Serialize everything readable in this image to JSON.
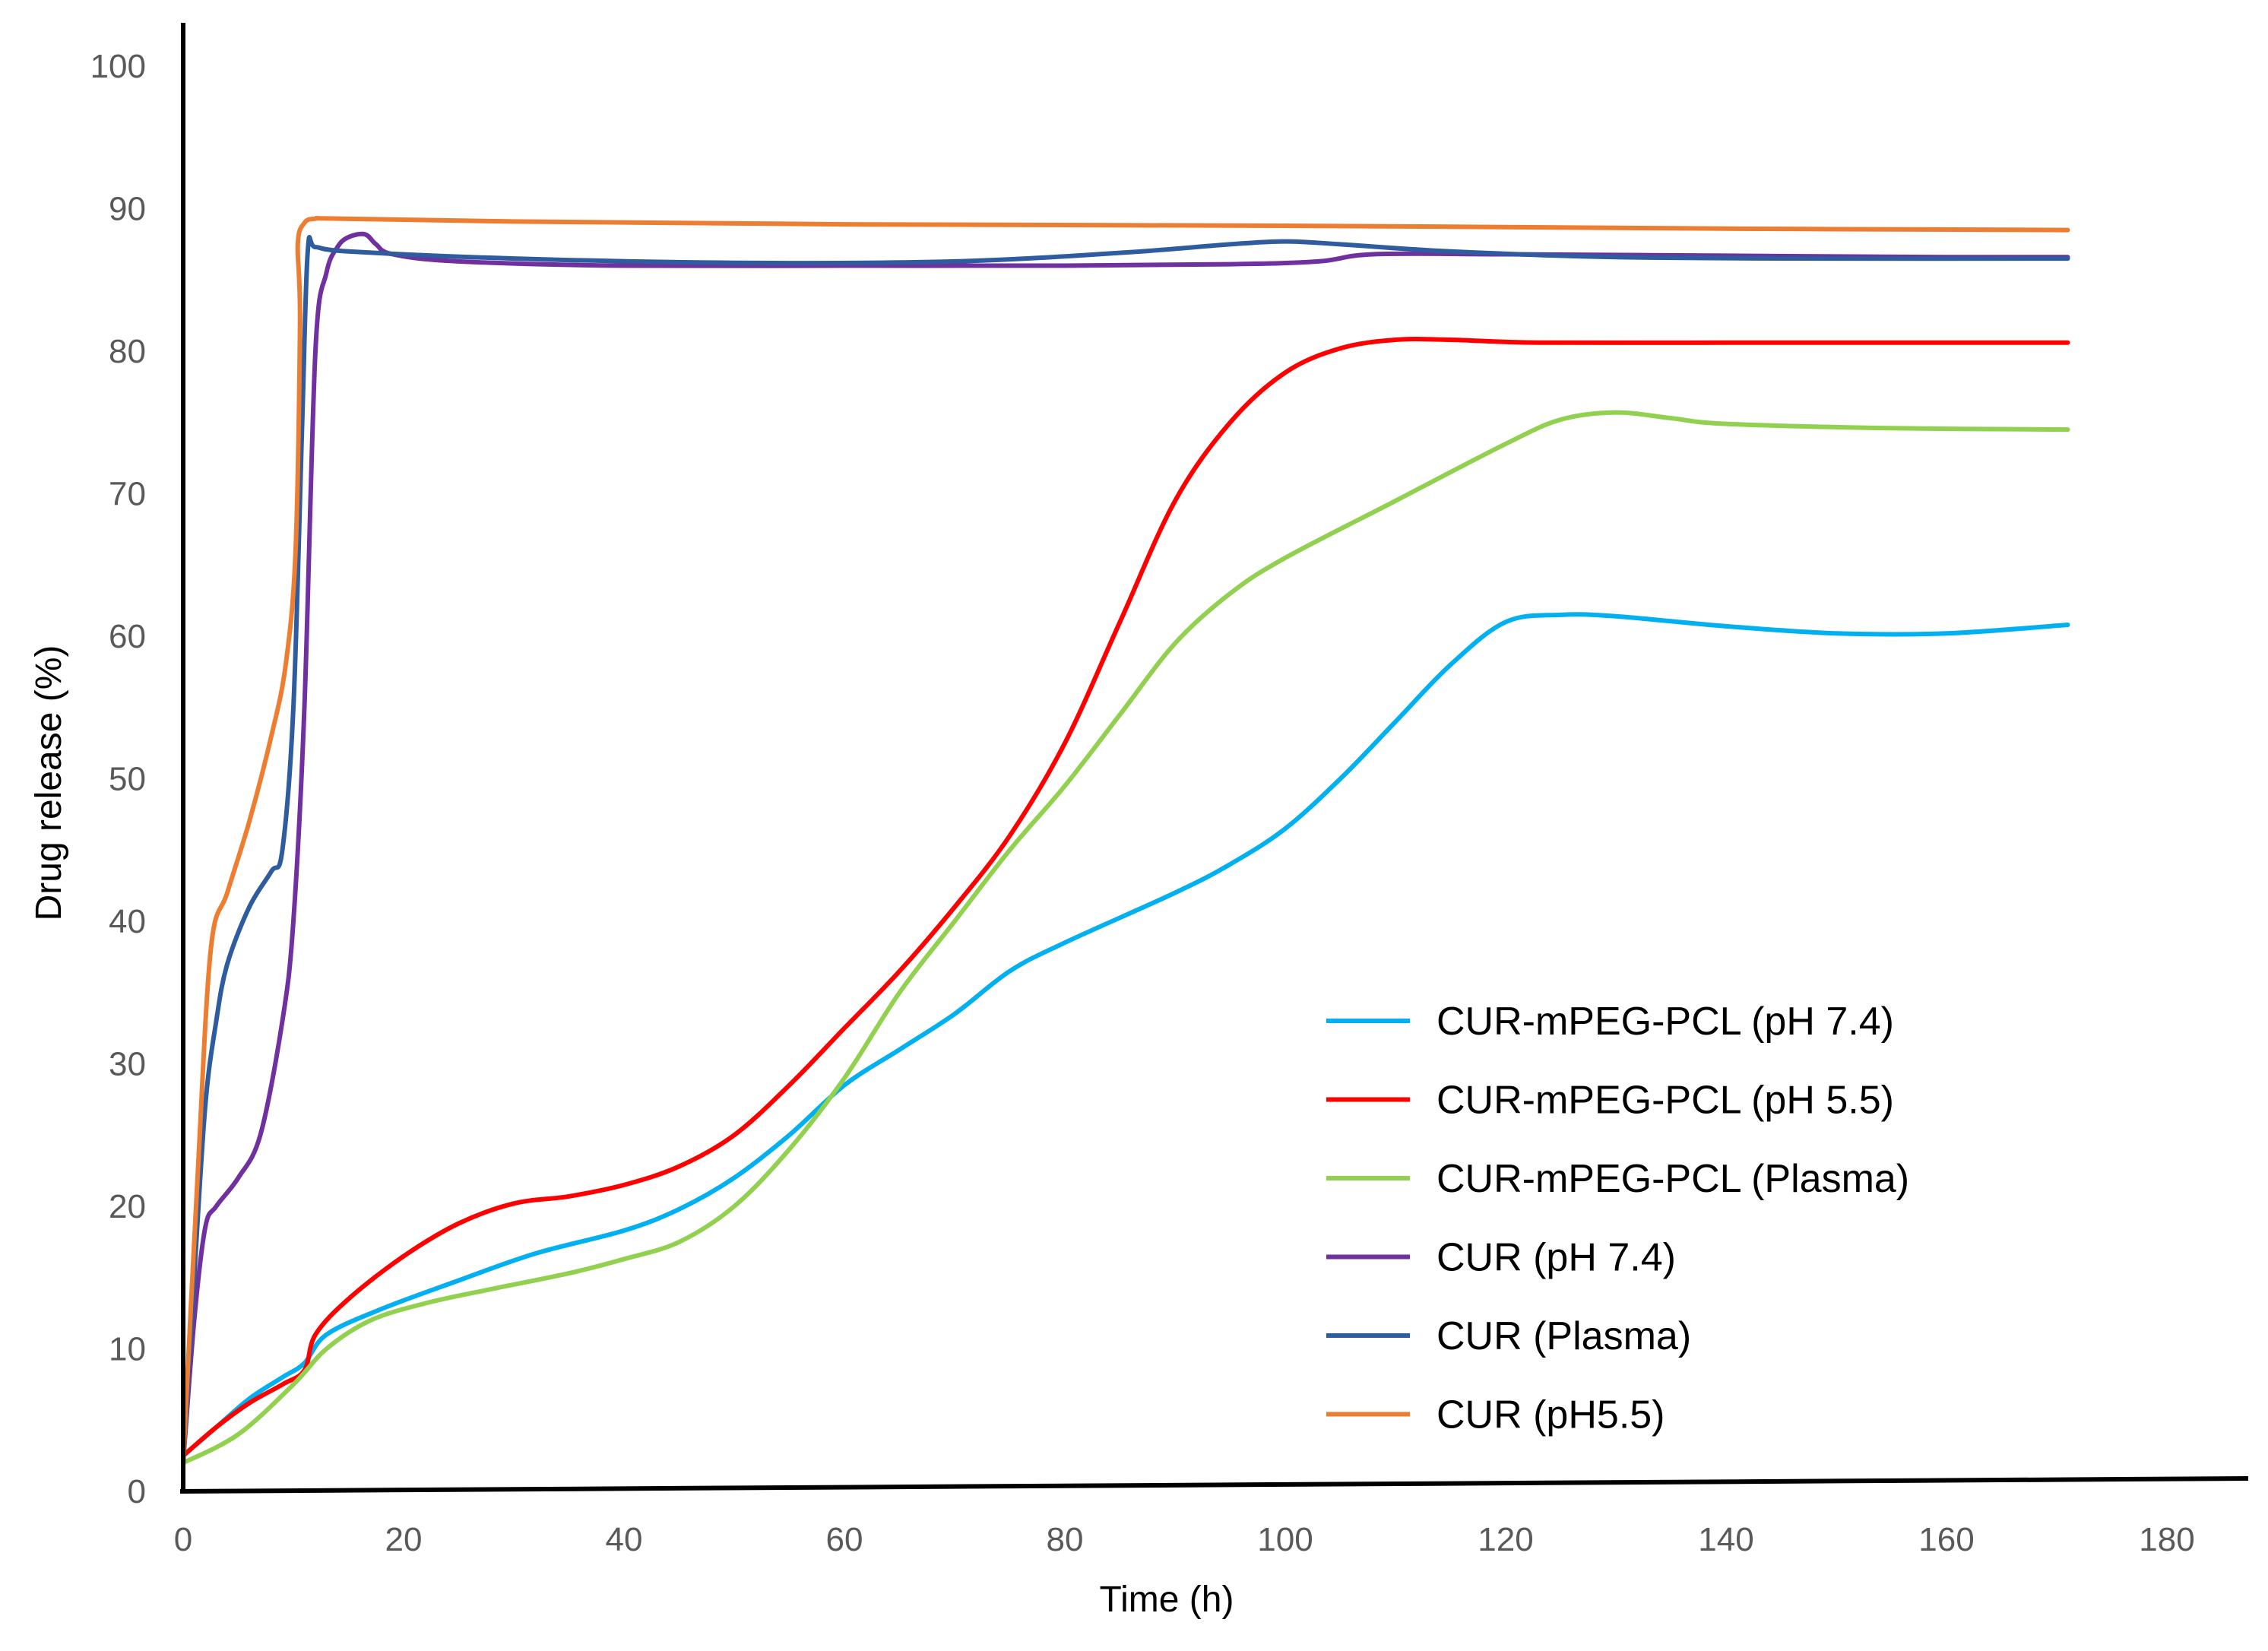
{
  "chart_data": {
    "type": "line",
    "title": "",
    "xlabel": "Time (h)",
    "ylabel": "Drug release (%)",
    "xlim": [
      0,
      188
    ],
    "ylim": [
      0,
      100
    ],
    "xticks": [
      "0",
      "20",
      "40",
      "60",
      "80",
      "100",
      "120",
      "140",
      "160",
      "180"
    ],
    "yticks": [
      "0",
      "10",
      "20",
      "30",
      "40",
      "50",
      "60",
      "70",
      "80",
      "90",
      "100"
    ],
    "grid": false,
    "legend_position": "bottom-right",
    "series": [
      {
        "name": "CUR-mPEG-PCL (pH 7.4)",
        "color": "#00b0f0",
        "points": [
          [
            0,
            2.5
          ],
          [
            3,
            4.5
          ],
          [
            6,
            6.5
          ],
          [
            9,
            8
          ],
          [
            11,
            9
          ],
          [
            13,
            11
          ],
          [
            18,
            12.8
          ],
          [
            25,
            14.8
          ],
          [
            32,
            16.7
          ],
          [
            40,
            18.3
          ],
          [
            45,
            19.8
          ],
          [
            50,
            22
          ],
          [
            55,
            25
          ],
          [
            60,
            28.5
          ],
          [
            65,
            31
          ],
          [
            70,
            33.5
          ],
          [
            75,
            36.5
          ],
          [
            80,
            38.5
          ],
          [
            90,
            42
          ],
          [
            95,
            44
          ],
          [
            100,
            46.5
          ],
          [
            105,
            50
          ],
          [
            110,
            54
          ],
          [
            115,
            58
          ],
          [
            120,
            61
          ],
          [
            125,
            61.5
          ],
          [
            130,
            61.4
          ],
          [
            140,
            60.7
          ],
          [
            150,
            60.2
          ],
          [
            160,
            60.2
          ],
          [
            171,
            60.8
          ]
        ]
      },
      {
        "name": "CUR-mPEG-PCL (pH 5.5)",
        "color": "#ff0000",
        "points": [
          [
            0,
            2.5
          ],
          [
            3,
            4.5
          ],
          [
            6,
            6.2
          ],
          [
            9,
            7.5
          ],
          [
            11,
            8.5
          ],
          [
            12,
            11
          ],
          [
            15,
            13.5
          ],
          [
            20,
            16.5
          ],
          [
            25,
            18.8
          ],
          [
            30,
            20.2
          ],
          [
            35,
            20.7
          ],
          [
            40,
            21.5
          ],
          [
            45,
            22.8
          ],
          [
            50,
            25
          ],
          [
            55,
            28.5
          ],
          [
            60,
            32.5
          ],
          [
            65,
            36.5
          ],
          [
            70,
            41
          ],
          [
            75,
            46
          ],
          [
            80,
            52.5
          ],
          [
            85,
            61
          ],
          [
            90,
            69.5
          ],
          [
            95,
            75
          ],
          [
            100,
            78.5
          ],
          [
            105,
            80.2
          ],
          [
            110,
            80.8
          ],
          [
            115,
            80.8
          ],
          [
            123,
            80.6
          ],
          [
            140,
            80.6
          ],
          [
            160,
            80.6
          ],
          [
            171,
            80.6
          ]
        ]
      },
      {
        "name": "CUR-mPEG-PCL (Plasma)",
        "color": "#92d050",
        "points": [
          [
            0,
            2
          ],
          [
            5,
            4
          ],
          [
            10,
            7.5
          ],
          [
            13,
            10
          ],
          [
            17,
            12
          ],
          [
            22,
            13.2
          ],
          [
            28,
            14.2
          ],
          [
            35,
            15.3
          ],
          [
            40,
            16.3
          ],
          [
            45,
            17.5
          ],
          [
            50,
            20
          ],
          [
            55,
            24
          ],
          [
            60,
            29
          ],
          [
            65,
            35
          ],
          [
            70,
            40
          ],
          [
            75,
            45
          ],
          [
            80,
            49.5
          ],
          [
            85,
            54.5
          ],
          [
            90,
            59.5
          ],
          [
            95,
            63
          ],
          [
            100,
            65.5
          ],
          [
            110,
            69.5
          ],
          [
            120,
            73.5
          ],
          [
            125,
            75.2
          ],
          [
            130,
            75.7
          ],
          [
            135,
            75.3
          ],
          [
            140,
            74.9
          ],
          [
            155,
            74.6
          ],
          [
            171,
            74.5
          ]
        ]
      },
      {
        "name": "CUR (pH 7.4)",
        "color": "#7030a0",
        "points": [
          [
            0,
            2
          ],
          [
            1,
            12
          ],
          [
            2,
            18.5
          ],
          [
            3,
            20
          ],
          [
            5,
            22
          ],
          [
            7,
            25
          ],
          [
            9,
            33
          ],
          [
            10,
            40
          ],
          [
            11,
            55
          ],
          [
            12,
            80
          ],
          [
            13,
            85.5
          ],
          [
            14,
            87.3
          ],
          [
            15,
            88
          ],
          [
            16.5,
            88.2
          ],
          [
            17.5,
            87.5
          ],
          [
            19,
            86.8
          ],
          [
            25,
            86.3
          ],
          [
            40,
            86
          ],
          [
            60,
            86
          ],
          [
            80,
            86
          ],
          [
            95,
            86.1
          ],
          [
            103,
            86.3
          ],
          [
            108,
            86.8
          ],
          [
            120,
            86.8
          ],
          [
            140,
            86.7
          ],
          [
            160,
            86.6
          ],
          [
            171,
            86.6
          ]
        ]
      },
      {
        "name": "CUR (Plasma)",
        "color": "#2e5c9e",
        "points": [
          [
            0,
            2
          ],
          [
            1,
            15
          ],
          [
            2,
            27
          ],
          [
            3,
            33
          ],
          [
            4,
            37
          ],
          [
            6,
            41
          ],
          [
            8,
            43.5
          ],
          [
            9,
            45
          ],
          [
            10,
            55
          ],
          [
            10.8,
            75
          ],
          [
            11.3,
            87
          ],
          [
            12,
            87.3
          ],
          [
            15,
            87
          ],
          [
            30,
            86.5
          ],
          [
            50,
            86.2
          ],
          [
            70,
            86.3
          ],
          [
            85,
            86.9
          ],
          [
            95,
            87.5
          ],
          [
            100,
            87.7
          ],
          [
            105,
            87.5
          ],
          [
            115,
            87
          ],
          [
            130,
            86.6
          ],
          [
            150,
            86.5
          ],
          [
            171,
            86.5
          ]
        ]
      },
      {
        "name": "CUR (pH5.5)",
        "color": "#ed7d31",
        "points": [
          [
            0,
            2
          ],
          [
            1.3,
            22
          ],
          [
            2.5,
            38
          ],
          [
            4,
            42
          ],
          [
            6,
            47
          ],
          [
            8,
            53
          ],
          [
            9.3,
            58
          ],
          [
            10.2,
            66
          ],
          [
            10.6,
            82
          ],
          [
            10.4,
            87.5
          ],
          [
            11,
            89
          ],
          [
            12,
            89.3
          ],
          [
            14,
            89.3
          ],
          [
            30,
            89.1
          ],
          [
            60,
            88.9
          ],
          [
            100,
            88.8
          ],
          [
            140,
            88.6
          ],
          [
            171,
            88.5
          ]
        ]
      }
    ]
  }
}
